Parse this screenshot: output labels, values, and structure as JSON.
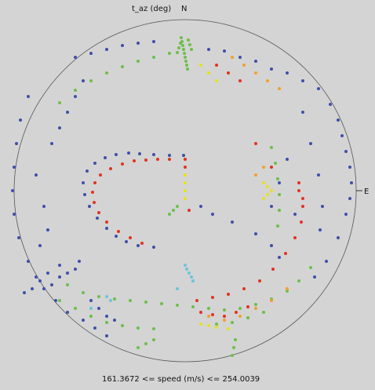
{
  "chart_data": {
    "type": "scatter",
    "title": "t_az (deg)",
    "north_label": "N",
    "east_label": "E",
    "footer": "161.3672  <=  speed (m/s)  <=  254.0039",
    "colors": {
      "background": "#d4d4d4",
      "ring": "#555555",
      "low": "#3f4fa8",
      "cyan": "#6cc4dc",
      "green": "#6cbf4a",
      "yellow": "#e8e020",
      "orange": "#f0a030",
      "high": "#e23220"
    },
    "series": [
      {
        "color": "blue",
        "points": [
          [
            -2,
            45
          ],
          [
            -20,
            45
          ],
          [
            -40,
            46
          ],
          [
            -58,
            47
          ],
          [
            -72,
            48
          ],
          [
            -88,
            46
          ],
          [
            -102,
            42
          ],
          [
            -115,
            35
          ],
          [
            -125,
            25
          ],
          [
            -130,
            10
          ],
          [
            -128,
            -5
          ],
          [
            -122,
            -20
          ],
          [
            -112,
            -35
          ],
          [
            -100,
            -48
          ],
          [
            -88,
            -58
          ],
          [
            -75,
            -65
          ],
          [
            -60,
            -70
          ],
          [
            -40,
            -72
          ],
          [
            20,
            -20
          ],
          [
            35,
            -30
          ],
          [
            60,
            -40
          ],
          [
            90,
            -55
          ],
          [
            110,
            -70
          ],
          [
            120,
            -85
          ],
          [
            -140,
            170
          ],
          [
            -120,
            175
          ],
          [
            -100,
            180
          ],
          [
            -80,
            185
          ],
          [
            -60,
            188
          ],
          [
            -40,
            190
          ],
          [
            30,
            180
          ],
          [
            50,
            178
          ],
          [
            70,
            170
          ],
          [
            90,
            165
          ],
          [
            110,
            155
          ],
          [
            130,
            150
          ],
          [
            150,
            140
          ],
          [
            170,
            130
          ],
          [
            185,
            110
          ],
          [
            195,
            90
          ],
          [
            200,
            70
          ],
          [
            205,
            50
          ],
          [
            210,
            30
          ],
          [
            212,
            10
          ],
          [
            210,
            -10
          ],
          [
            205,
            -30
          ],
          [
            195,
            -60
          ],
          [
            180,
            -90
          ],
          [
            165,
            -110
          ],
          [
            -200,
            120
          ],
          [
            -210,
            90
          ],
          [
            -215,
            60
          ],
          [
            -218,
            30
          ],
          [
            -220,
            0
          ],
          [
            -218,
            -30
          ],
          [
            -212,
            -60
          ],
          [
            -200,
            -90
          ],
          [
            -190,
            -110
          ],
          [
            -180,
            -125
          ],
          [
            -165,
            -140
          ],
          [
            -150,
            -155
          ],
          [
            -130,
            -165
          ],
          [
            -115,
            -175
          ],
          [
            -100,
            -185
          ],
          [
            -170,
            -120
          ],
          [
            -160,
            -110
          ],
          [
            -150,
            -105
          ],
          [
            -140,
            -100
          ],
          [
            -135,
            -90
          ],
          [
            -160,
            -95
          ],
          [
            -175,
            -105
          ],
          [
            -185,
            -115
          ],
          [
            -195,
            -125
          ],
          [
            -205,
            -130
          ],
          [
            -120,
            -140
          ],
          [
            -110,
            -150
          ],
          [
            -100,
            -160
          ],
          [
            -90,
            -165
          ],
          [
            -170,
            60
          ],
          [
            -160,
            80
          ],
          [
            -150,
            100
          ],
          [
            -140,
            120
          ],
          [
            -130,
            140
          ],
          [
            150,
            100
          ],
          [
            160,
            60
          ],
          [
            170,
            20
          ],
          [
            175,
            -20
          ],
          [
            172,
            -50
          ],
          [
            130,
            40
          ],
          [
            120,
            10
          ],
          [
            110,
            -20
          ],
          [
            140,
            -30
          ],
          [
            -190,
            20
          ],
          [
            -180,
            -20
          ],
          [
            -175,
            -50
          ],
          [
            -185,
            -70
          ]
        ]
      },
      {
        "color": "cyan",
        "points": [
          [
            0,
            -95
          ],
          [
            2,
            -100
          ],
          [
            5,
            -105
          ],
          [
            8,
            -110
          ],
          [
            10,
            -115
          ],
          [
            -10,
            -125
          ],
          [
            -100,
            -135
          ],
          [
            -95,
            -140
          ],
          [
            -120,
            -150
          ]
        ]
      },
      {
        "color": "green",
        "points": [
          [
            -5,
            195
          ],
          [
            -4,
            190
          ],
          [
            -3,
            185
          ],
          [
            -2,
            180
          ],
          [
            -1,
            175
          ],
          [
            0,
            170
          ],
          [
            1,
            165
          ],
          [
            2,
            160
          ],
          [
            3,
            155
          ],
          [
            -6,
            188
          ],
          [
            -8,
            182
          ],
          [
            -10,
            176
          ],
          [
            4,
            192
          ],
          [
            6,
            186
          ],
          [
            8,
            180
          ],
          [
            -20,
            175
          ],
          [
            -40,
            170
          ],
          [
            -60,
            165
          ],
          [
            -80,
            158
          ],
          [
            -100,
            150
          ],
          [
            -120,
            140
          ],
          [
            -140,
            128
          ],
          [
            -160,
            112
          ],
          [
            110,
            55
          ],
          [
            115,
            35
          ],
          [
            118,
            15
          ],
          [
            120,
            -5
          ],
          [
            120,
            -25
          ],
          [
            118,
            -45
          ],
          [
            -20,
            -30
          ],
          [
            -15,
            -25
          ],
          [
            -10,
            -20
          ],
          [
            -150,
            -120
          ],
          [
            -130,
            -130
          ],
          [
            -110,
            -135
          ],
          [
            -90,
            -138
          ],
          [
            -70,
            -140
          ],
          [
            -50,
            -142
          ],
          [
            -30,
            -144
          ],
          [
            -10,
            -146
          ],
          [
            10,
            -148
          ],
          [
            30,
            -150
          ],
          [
            50,
            -152
          ],
          [
            70,
            -150
          ],
          [
            90,
            -145
          ],
          [
            110,
            -138
          ],
          [
            130,
            -128
          ],
          [
            145,
            -115
          ],
          [
            160,
            -98
          ],
          [
            -160,
            -140
          ],
          [
            -140,
            -150
          ],
          [
            -120,
            -160
          ],
          [
            -100,
            -168
          ],
          [
            -80,
            -172
          ],
          [
            -60,
            -175
          ],
          [
            -40,
            -176
          ],
          [
            40,
            -170
          ],
          [
            60,
            -168
          ],
          [
            80,
            -162
          ],
          [
            100,
            -155
          ],
          [
            -60,
            -200
          ],
          [
            -50,
            -195
          ],
          [
            -40,
            -190
          ],
          [
            60,
            -210
          ],
          [
            62,
            -200
          ],
          [
            64,
            -190
          ]
        ]
      },
      {
        "color": "yellow",
        "points": [
          [
            0,
            20
          ],
          [
            0,
            10
          ],
          [
            0,
            0
          ],
          [
            0,
            -10
          ],
          [
            100,
            10
          ],
          [
            105,
            5
          ],
          [
            110,
            0
          ],
          [
            105,
            -5
          ],
          [
            100,
            -10
          ],
          [
            20,
            160
          ],
          [
            30,
            150
          ],
          [
            40,
            140
          ],
          [
            20,
            -170
          ],
          [
            30,
            -172
          ],
          [
            40,
            -174
          ],
          [
            55,
            -176
          ]
        ]
      },
      {
        "color": "orange",
        "points": [
          [
            60,
            170
          ],
          [
            75,
            160
          ],
          [
            90,
            150
          ],
          [
            105,
            140
          ],
          [
            120,
            130
          ],
          [
            100,
            30
          ],
          [
            90,
            20
          ],
          [
            30,
            -160
          ],
          [
            50,
            -165
          ],
          [
            70,
            -160
          ],
          [
            90,
            -150
          ],
          [
            110,
            -140
          ],
          [
            130,
            -125
          ]
        ]
      },
      {
        "color": "red",
        "points": [
          [
            0,
            40
          ],
          [
            0,
            30
          ],
          [
            5,
            -25
          ],
          [
            -20,
            40
          ],
          [
            -35,
            40
          ],
          [
            -50,
            39
          ],
          [
            -65,
            38
          ],
          [
            -80,
            34
          ],
          [
            -95,
            28
          ],
          [
            -108,
            20
          ],
          [
            -115,
            10
          ],
          [
            -118,
            -2
          ],
          [
            -116,
            -15
          ],
          [
            -110,
            -28
          ],
          [
            -100,
            -40
          ],
          [
            -85,
            -52
          ],
          [
            -70,
            -60
          ],
          [
            -55,
            -67
          ],
          [
            145,
            10
          ],
          [
            145,
            0
          ],
          [
            150,
            -10
          ],
          [
            150,
            -20
          ],
          [
            148,
            -40
          ],
          [
            140,
            -60
          ],
          [
            128,
            -80
          ],
          [
            112,
            -100
          ],
          [
            95,
            -115
          ],
          [
            75,
            -125
          ],
          [
            55,
            -132
          ],
          [
            35,
            -136
          ],
          [
            15,
            -140
          ],
          [
            40,
            160
          ],
          [
            55,
            150
          ],
          [
            70,
            140
          ],
          [
            20,
            -155
          ],
          [
            35,
            -158
          ],
          [
            50,
            -160
          ],
          [
            65,
            -155
          ],
          [
            80,
            -148
          ],
          [
            110,
            30
          ],
          [
            90,
            60
          ]
        ]
      }
    ]
  }
}
